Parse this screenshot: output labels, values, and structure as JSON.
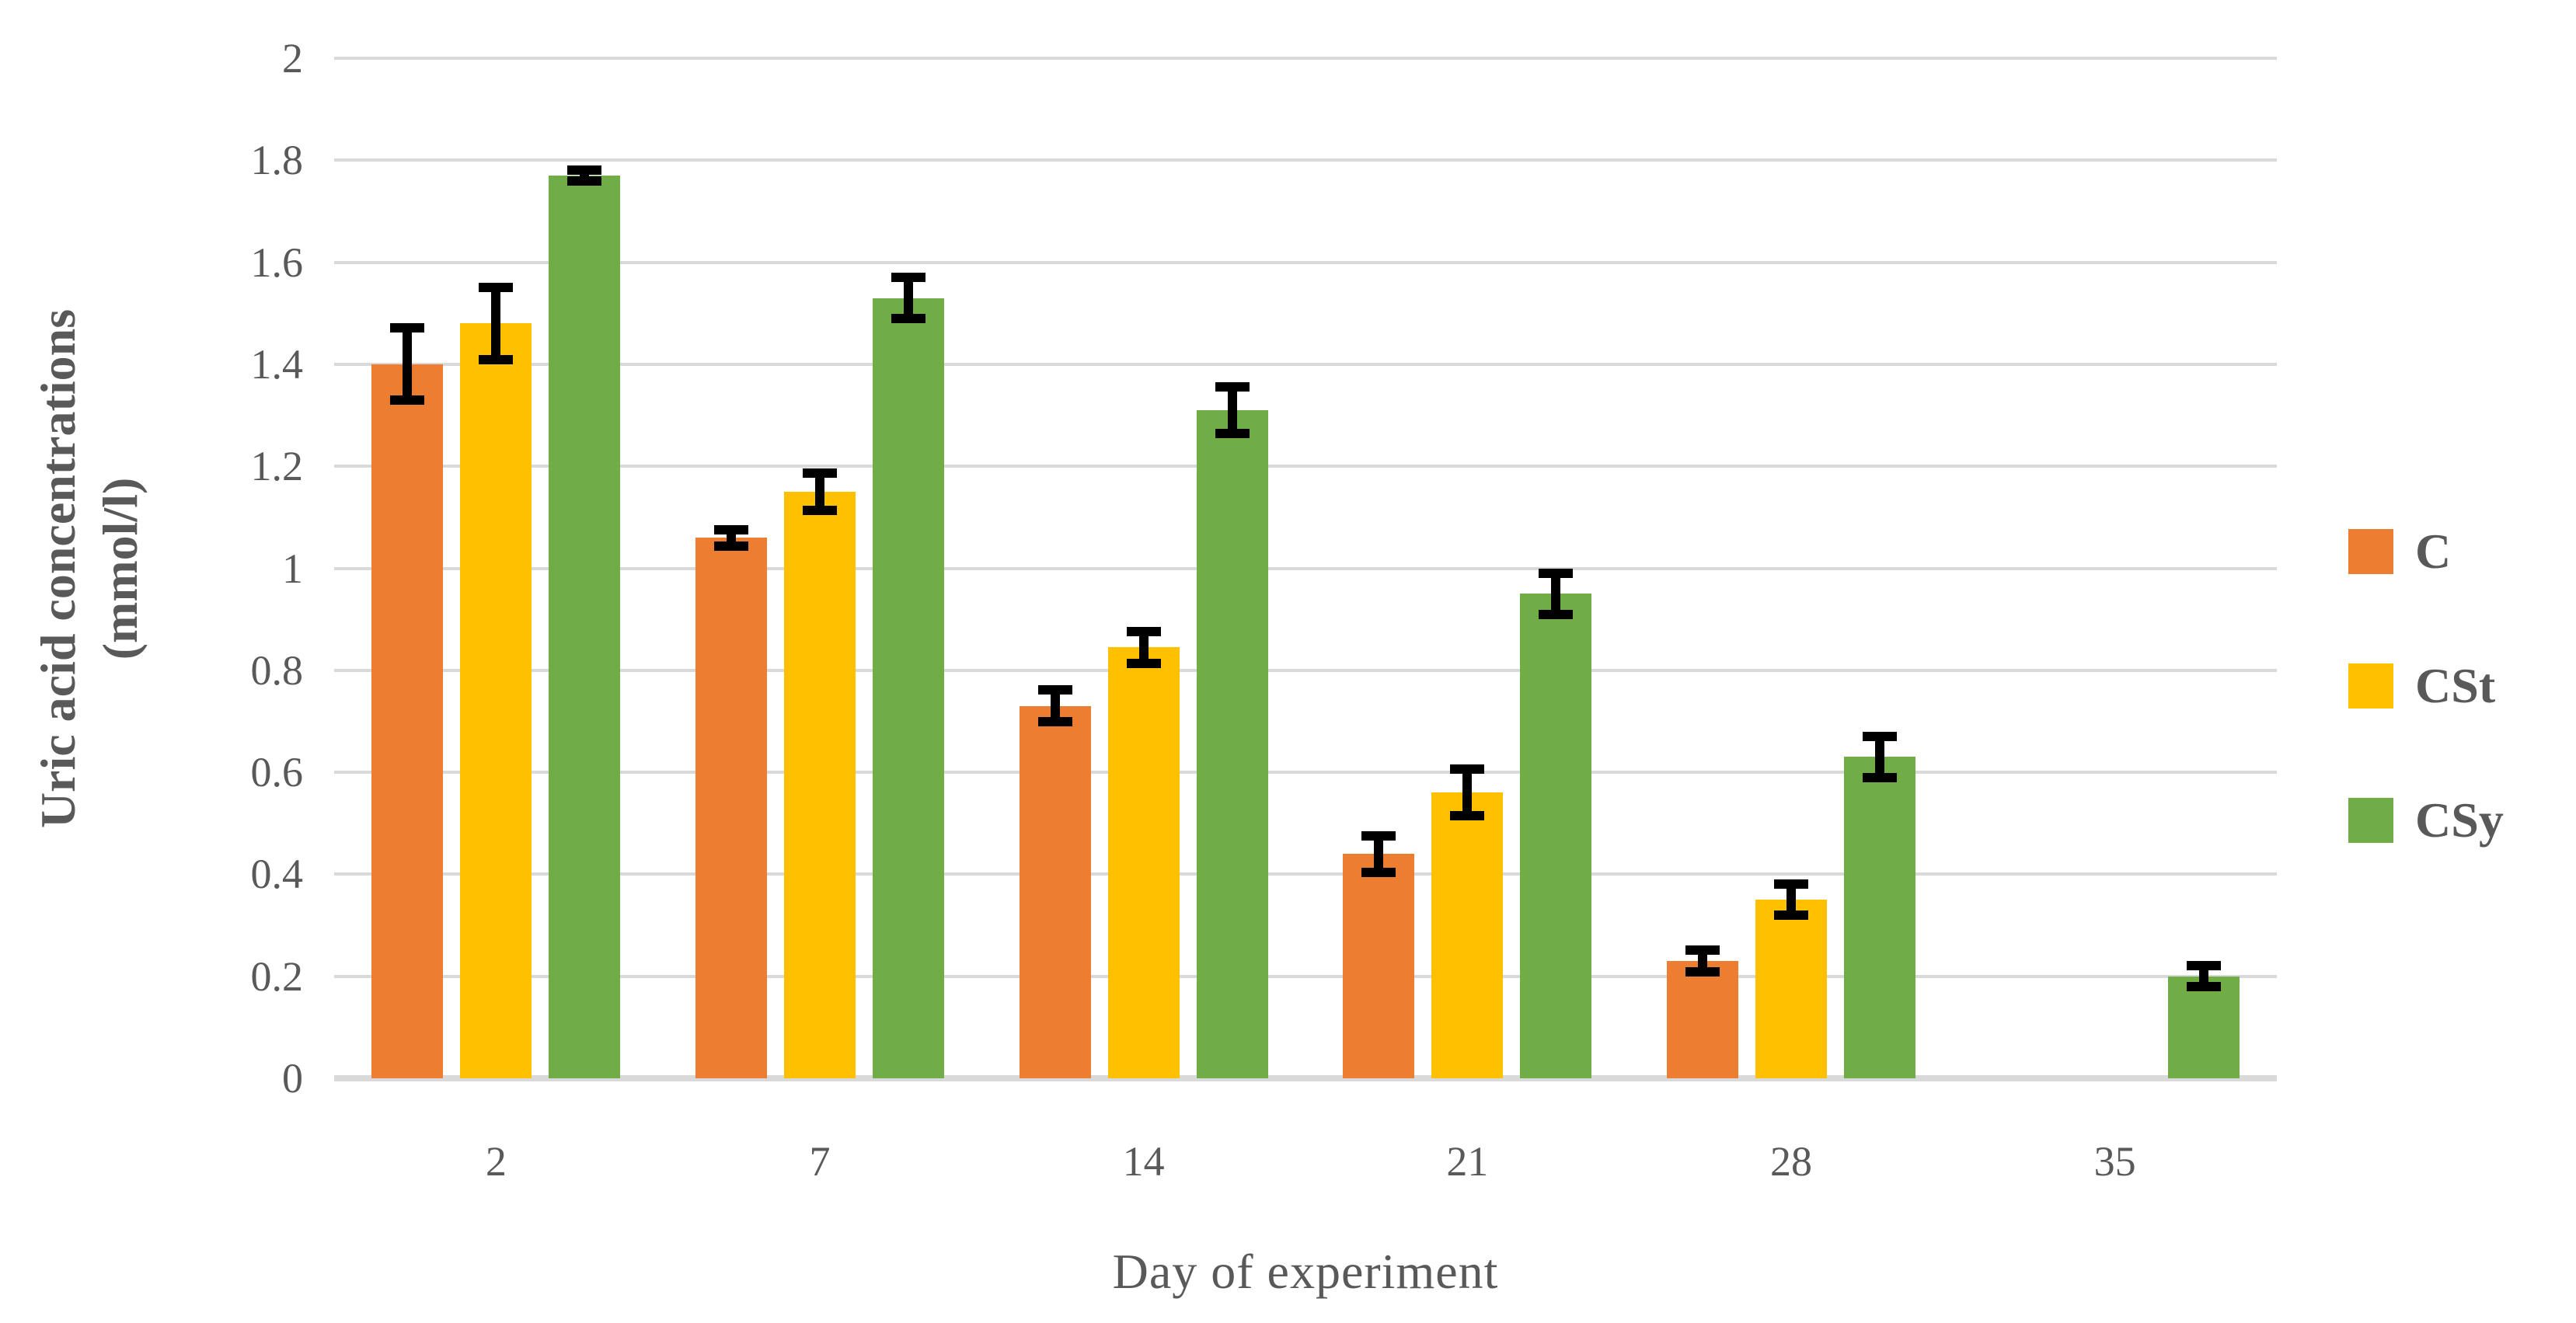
{
  "chart_data": {
    "type": "bar",
    "title": "",
    "xlabel": "Day of experiment",
    "ylabel": "Uric acid concentrations (mmol/l)",
    "ylabel_lines": [
      "Uric acid concentrations",
      "(mmol/l)"
    ],
    "categories": [
      "2",
      "7",
      "14",
      "21",
      "28",
      "35"
    ],
    "series": [
      {
        "name": "C",
        "color": "#ED7D31",
        "values": [
          1.4,
          1.06,
          0.73,
          0.44,
          0.23,
          null
        ],
        "errors": [
          0.08,
          0.025,
          0.04,
          0.045,
          0.03,
          null
        ]
      },
      {
        "name": "CSt",
        "color": "#FFC000",
        "values": [
          1.48,
          1.15,
          0.845,
          0.56,
          0.35,
          null
        ],
        "errors": [
          0.08,
          0.045,
          0.04,
          0.055,
          0.04,
          null
        ]
      },
      {
        "name": "CSy",
        "color": "#70AD47",
        "values": [
          1.77,
          1.53,
          1.31,
          0.95,
          0.63,
          0.2
        ],
        "errors": [
          0.02,
          0.05,
          0.055,
          0.05,
          0.05,
          0.03
        ]
      }
    ],
    "y_ticks": [
      "2",
      "1.8",
      "1.6",
      "1.4",
      "1.2",
      "1",
      "0.8",
      "0.6",
      "0.4",
      "0.2",
      "0"
    ],
    "ylim": [
      0,
      2
    ],
    "y_step": 0.2,
    "grid": true,
    "legend_position": "right",
    "error_bar_color": "#000000"
  },
  "colors": {
    "text": "#595959",
    "gridline": "#D9D9D9",
    "background": "#FFFFFF"
  }
}
